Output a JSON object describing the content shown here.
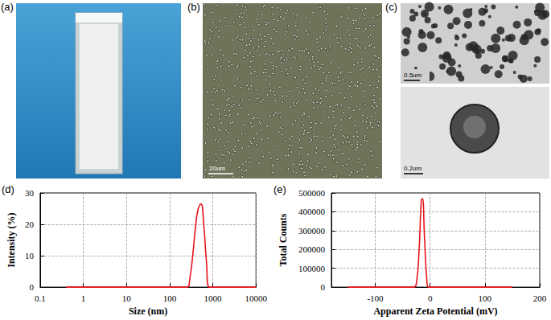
{
  "panels": [
    {
      "label": "(a)"
    },
    {
      "label": "(b)",
      "scale_bar": "20um"
    },
    {
      "label": "(c)",
      "scale_bars": [
        "0.5um",
        "0.2um"
      ]
    }
  ],
  "chart_data": [
    {
      "label": "(d)",
      "type": "line",
      "color": "#e8141c",
      "x": [
        0.4,
        1,
        10,
        100,
        255,
        295,
        342,
        396,
        459,
        531,
        615,
        712,
        825,
        1000,
        10000
      ],
      "values": [
        0,
        0,
        0,
        0,
        0,
        3,
        10,
        19,
        25,
        26.5,
        20,
        8,
        0,
        0,
        0
      ],
      "xlabel": "Size (nm)",
      "ylabel": "Intensity (%)",
      "log": "x",
      "xlim": [
        0.1,
        10000
      ],
      "xticks": [
        0.1,
        1,
        10,
        100,
        1000,
        10000
      ],
      "ylim": [
        0,
        30
      ],
      "yticks": [
        0,
        10,
        20,
        30
      ],
      "grid": true
    },
    {
      "label": "(e)",
      "type": "line",
      "color": "#e8141c",
      "x": [
        -150,
        -30,
        -25,
        -20,
        -16,
        -14,
        -10,
        -6,
        -3,
        150
      ],
      "values": [
        0,
        0,
        20000,
        200000,
        460000,
        470000,
        250000,
        40000,
        0,
        0
      ],
      "xlabel": "Apparent Zeta Potential (mV)",
      "ylabel": "Total Counts",
      "xlim": [
        -180,
        200
      ],
      "xticks": [
        -100,
        0,
        100,
        200
      ],
      "ylim": [
        0,
        500000
      ],
      "yticks": [
        0,
        100000,
        200000,
        300000,
        400000,
        500000
      ],
      "grid": true
    }
  ]
}
